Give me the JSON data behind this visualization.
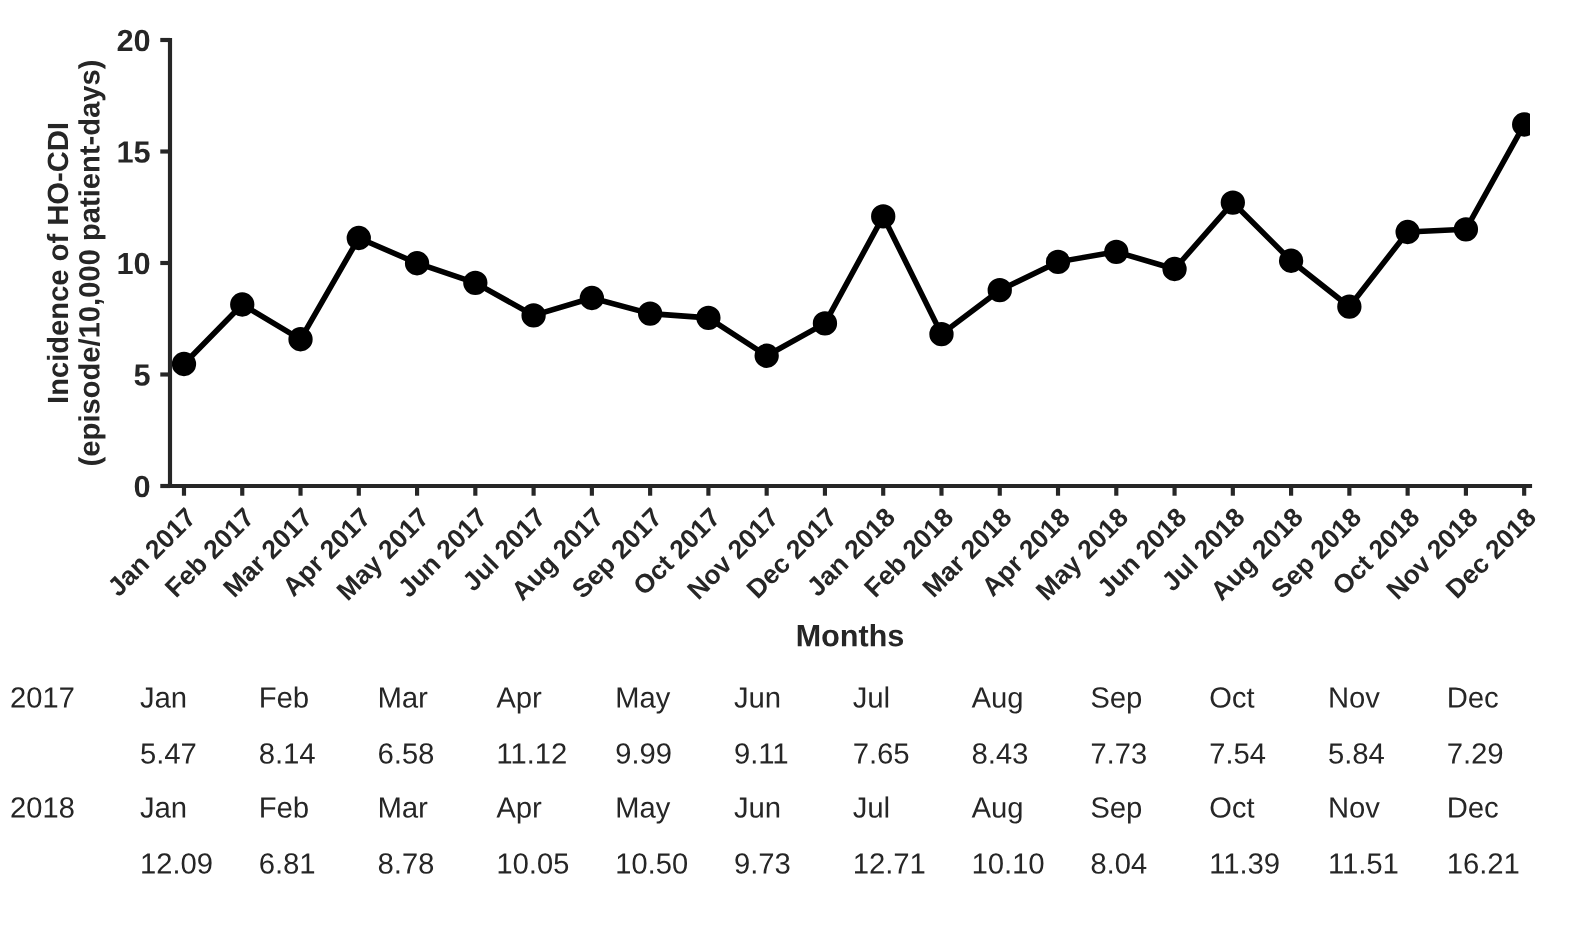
{
  "chart_data": {
    "type": "line",
    "xlabel": "Months",
    "ylabel": "Incidence of HO-CDI\n(episode/10,000 patient-days)",
    "categories": [
      "Jan 2017",
      "Feb 2017",
      "Mar 2017",
      "Apr 2017",
      "May 2017",
      "Jun 2017",
      "Jul 2017",
      "Aug 2017",
      "Sep 2017",
      "Oct 2017",
      "Nov 2017",
      "Dec 2017",
      "Jan 2018",
      "Feb 2018",
      "Mar 2018",
      "Apr 2018",
      "May 2018",
      "Jun 2018",
      "Jul 2018",
      "Aug 2018",
      "Sep 2018",
      "Oct 2018",
      "Nov 2018",
      "Dec 2018"
    ],
    "series": [
      {
        "color": "#000000",
        "values": [
          5.47,
          8.14,
          6.58,
          11.12,
          9.99,
          9.11,
          7.65,
          8.43,
          7.73,
          7.54,
          5.84,
          7.29,
          12.09,
          6.81,
          8.78,
          10.05,
          10.5,
          9.73,
          12.71,
          10.1,
          8.04,
          11.39,
          11.51,
          16.21
        ]
      }
    ],
    "annotations": [
      "2017",
      "Jan",
      "Feb",
      "Mar",
      "Apr",
      "May",
      "Jun",
      "Jul",
      "Aug",
      "Sep",
      "Oct",
      "Nov",
      "Dec",
      "5.47",
      "8.14",
      "6.58",
      "11.12",
      "9.99",
      "9.11",
      "7.65",
      "8.43",
      "7.73",
      "7.54",
      "5.84",
      "7.29",
      "2018",
      "Jan",
      "Feb",
      "Mar",
      "Apr",
      "May",
      "Jun",
      "Jul",
      "Aug",
      "Sep",
      "Oct",
      "Nov",
      "Dec",
      "12.09",
      "6.81",
      "8.78",
      "10.05",
      "10.50",
      "9.73",
      "12.71",
      "10.10",
      "8.04",
      "11.39",
      "11.51",
      "16.21"
    ],
    "ylim": [
      0,
      20
    ],
    "yticks": [
      0,
      5,
      10,
      15,
      20
    ],
    "grid": false,
    "marker": "circle",
    "line_style": "solid"
  }
}
